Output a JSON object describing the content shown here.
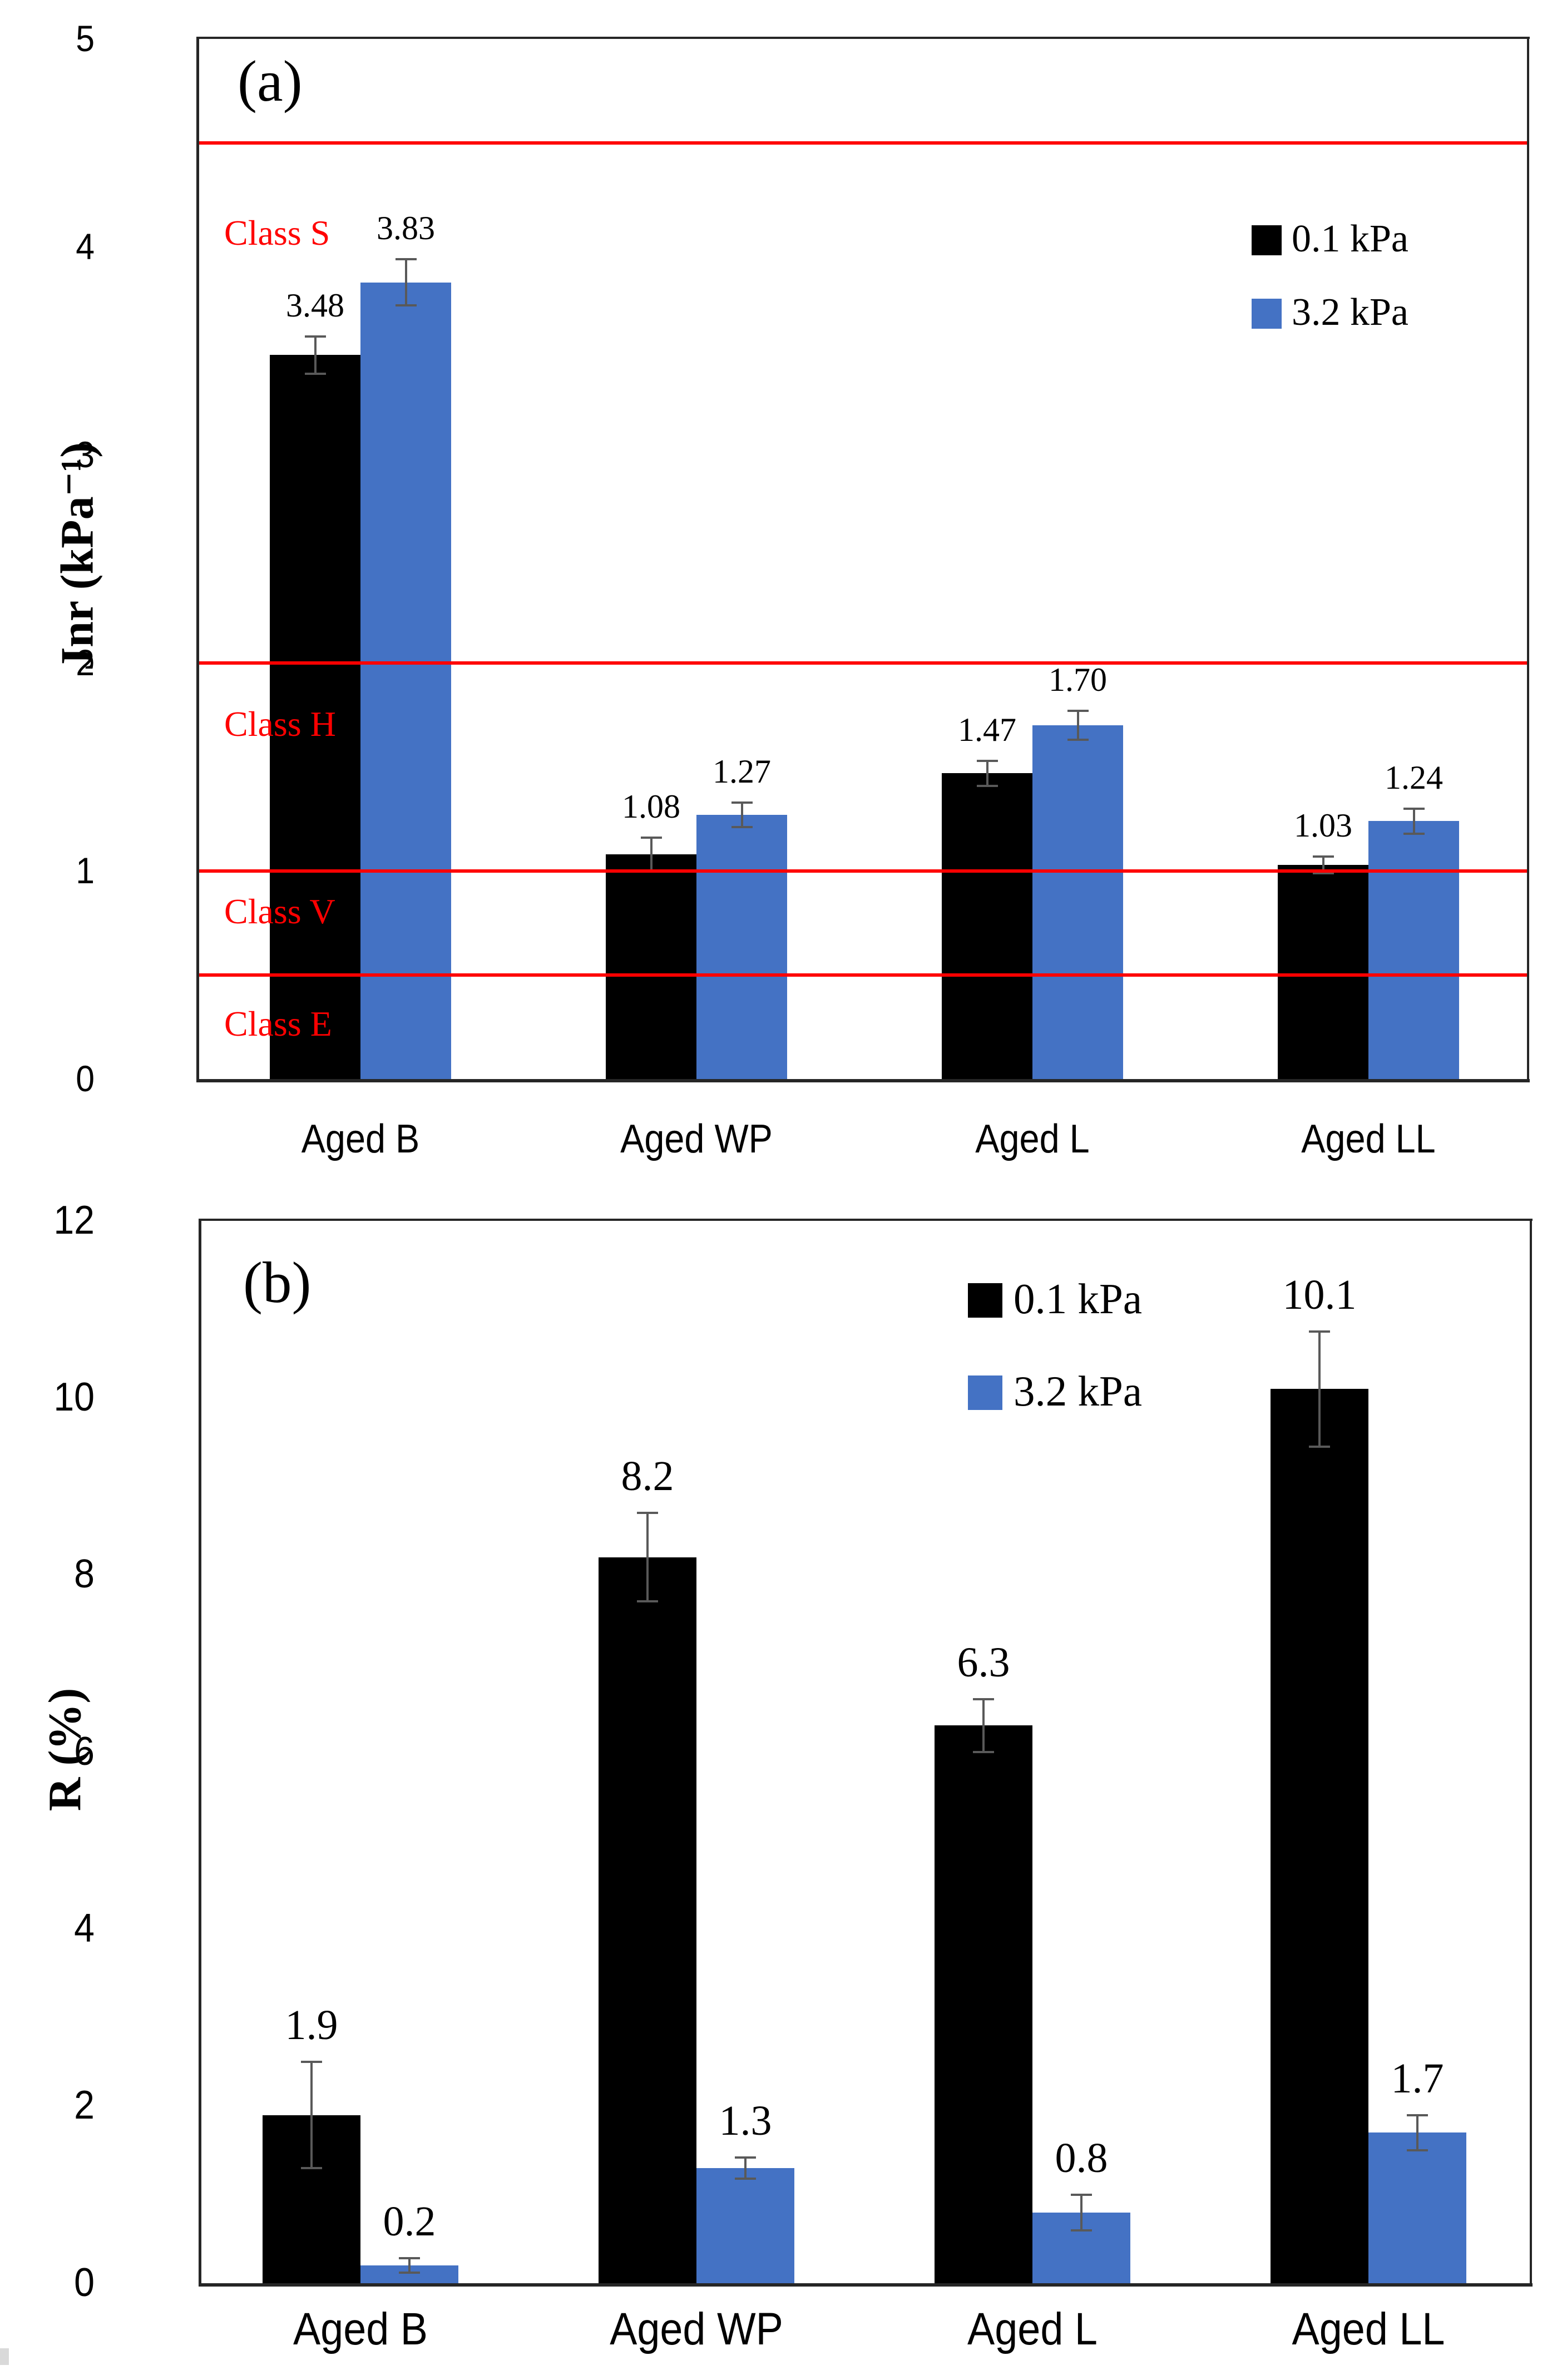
{
  "figure": {
    "background": "#ffffff",
    "panel_count": 2
  },
  "colors": {
    "series_black": "#000000",
    "series_blue": "#4472C4",
    "reference_red": "#FF0000",
    "error_bar": "#595959",
    "axis": "#262626",
    "edge_artifact": "#d9d9d9"
  },
  "chart_data": [
    {
      "type": "bar",
      "panel_label": "(a)",
      "ylabel": "Jnr (kPa⁻¹)",
      "xlabel": "",
      "ylim": [
        0,
        5
      ],
      "yticks": [
        0,
        1,
        2,
        3,
        4,
        5
      ],
      "ytick_labels": [
        "0",
        "1",
        "2",
        "3",
        "4",
        "5"
      ],
      "grid": false,
      "categories": [
        "Aged B",
        "Aged WP",
        "Aged L",
        "Aged LL"
      ],
      "series": [
        {
          "name": "0.1 kPa",
          "color": "#000000",
          "values": [
            3.48,
            1.08,
            1.47,
            1.03
          ],
          "errors": [
            0.09,
            0.08,
            0.06,
            0.04
          ],
          "value_labels": [
            "3.48",
            "1.08",
            "1.47",
            "1.03"
          ]
        },
        {
          "name": "3.2 kPa",
          "color": "#4472C4",
          "values": [
            3.83,
            1.27,
            1.7,
            1.24
          ],
          "errors": [
            0.11,
            0.06,
            0.07,
            0.06
          ],
          "value_labels": [
            "3.83",
            "1.27",
            "1.70",
            "1.24"
          ]
        }
      ],
      "reference_lines": [
        {
          "value": 4.5,
          "label": "Class S",
          "label_at": 4.06
        },
        {
          "value": 2.0,
          "label": "Class H",
          "label_at": 1.7
        },
        {
          "value": 1.0,
          "label": "Class V",
          "label_at": 0.8
        },
        {
          "value": 0.5,
          "label": "Class E",
          "label_at": 0.26
        }
      ],
      "legend": {
        "position": "top-right",
        "items": [
          {
            "label": "0.1 kPa",
            "color": "#000000"
          },
          {
            "label": "3.2 kPa",
            "color": "#4472C4"
          }
        ]
      }
    },
    {
      "type": "bar",
      "panel_label": "(b)",
      "ylabel": "R (%)",
      "xlabel": "",
      "ylim": [
        0,
        12
      ],
      "yticks": [
        0,
        2,
        4,
        6,
        8,
        10,
        12
      ],
      "ytick_labels": [
        "0",
        "2",
        "4",
        "6",
        "8",
        "10",
        "12"
      ],
      "grid": false,
      "categories": [
        "Aged B",
        "Aged WP",
        "Aged L",
        "Aged LL"
      ],
      "series": [
        {
          "name": "0.1 kPa",
          "color": "#000000",
          "values": [
            1.9,
            8.2,
            6.3,
            10.1
          ],
          "errors": [
            0.6,
            0.5,
            0.3,
            0.65
          ],
          "value_labels": [
            "1.9",
            "8.2",
            "6.3",
            "10.1"
          ]
        },
        {
          "name": "3.2 kPa",
          "color": "#4472C4",
          "values": [
            0.2,
            1.3,
            0.8,
            1.7
          ],
          "errors": [
            0.08,
            0.12,
            0.2,
            0.2
          ],
          "value_labels": [
            "0.2",
            "1.3",
            "0.8",
            "1.7"
          ]
        }
      ],
      "reference_lines": [],
      "legend": {
        "position": "top-center",
        "items": [
          {
            "label": "0.1 kPa",
            "color": "#000000"
          },
          {
            "label": "3.2 kPa",
            "color": "#4472C4"
          }
        ]
      }
    }
  ]
}
